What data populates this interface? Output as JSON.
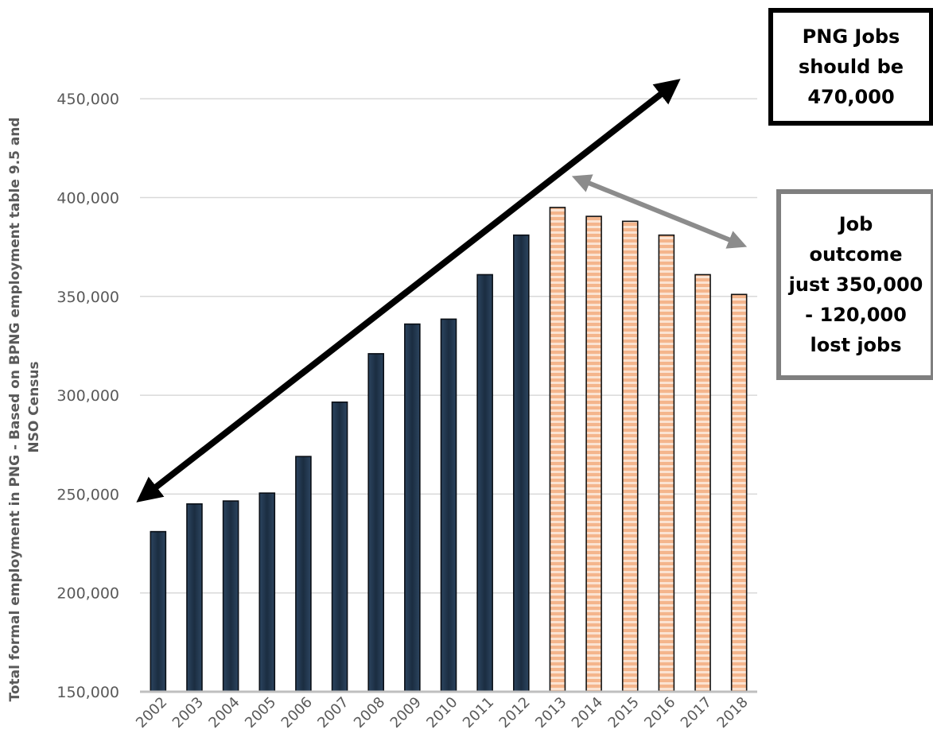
{
  "chart_data": {
    "type": "bar",
    "ylabel": "Total formal employment in PNG - Based on BPNG employment table 9.5 and NSO Census",
    "ylim": [
      150000,
      470000
    ],
    "yticks": [
      150000,
      200000,
      250000,
      300000,
      350000,
      400000,
      450000
    ],
    "ytick_labels": [
      "150,000",
      "200,000",
      "250,000",
      "300,000",
      "350,000",
      "400,000",
      "450,000"
    ],
    "grid": true,
    "categories": [
      "2002",
      "2003",
      "2004",
      "2005",
      "2006",
      "2007",
      "2008",
      "2009",
      "2010",
      "2011",
      "2012",
      "2013",
      "2014",
      "2015",
      "2016",
      "2017",
      "2018"
    ],
    "values": [
      231000,
      245000,
      246500,
      250500,
      269000,
      296500,
      321000,
      336000,
      338500,
      361000,
      381000,
      395000,
      390500,
      388000,
      381000,
      361000,
      351000
    ],
    "bar_styles": [
      "dark",
      "dark",
      "dark",
      "dark",
      "dark",
      "dark",
      "dark",
      "dark",
      "dark",
      "dark",
      "dark",
      "striped",
      "striped",
      "striped",
      "striped",
      "striped",
      "striped"
    ],
    "colors": {
      "dark": "#1f3349",
      "dark_edge": "#0a0f16",
      "striped_fill": "#f4b58c",
      "striped_line": "#fbe3d2",
      "striped_edge": "#111111",
      "trend_arrow": "#000000",
      "outcome_arrow": "#8c8c8c",
      "grid": "#d9d9d9",
      "axis": "#bfbfbf",
      "tick_text": "#595959",
      "label_text": "#595959"
    },
    "annotations": [
      {
        "text_lines": [
          "PNG Jobs",
          "should be",
          "470,000"
        ],
        "border": "black"
      },
      {
        "text_lines": [
          "Job",
          "outcome",
          "just 350,000",
          "- 120,000",
          "lost jobs"
        ],
        "border": "gray"
      }
    ]
  }
}
